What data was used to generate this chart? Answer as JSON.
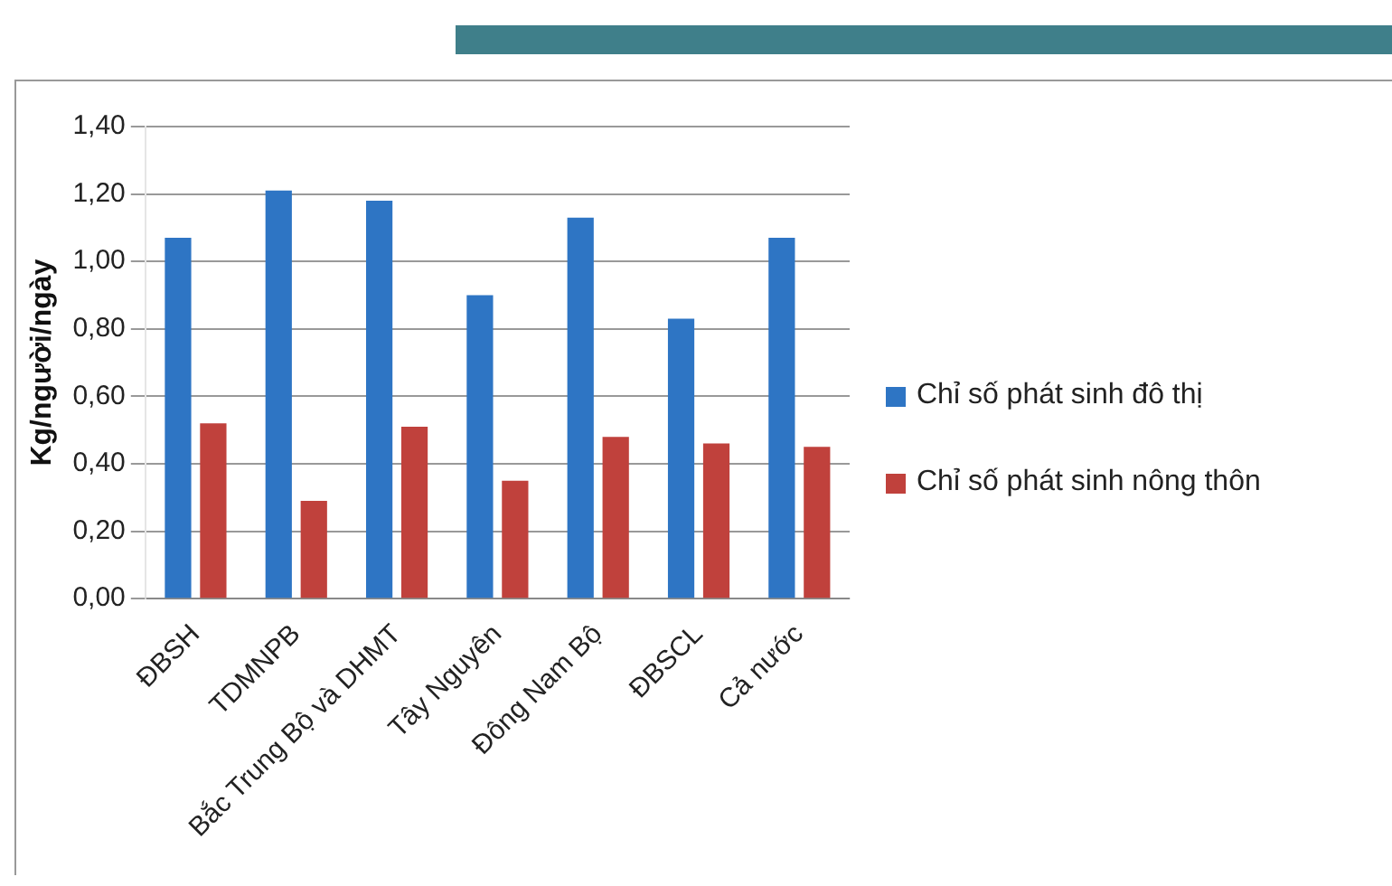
{
  "chart_data": {
    "type": "bar",
    "ylabel": "Kg/người/ngày",
    "categories": [
      "ĐBSH",
      "TDMNPB",
      "Bắc Trung Bộ và DHMT",
      "Tây Nguyên",
      "Đông Nam Bộ",
      "ĐBSCL",
      "Cả nước"
    ],
    "series": [
      {
        "name": "Chỉ số phát sinh đô thị",
        "color": "#2e75c4",
        "values": [
          1.07,
          1.21,
          1.18,
          0.9,
          1.13,
          0.83,
          1.07
        ]
      },
      {
        "name": "Chỉ số phát sinh nông thôn",
        "color": "#c0413c",
        "values": [
          0.52,
          0.29,
          0.51,
          0.35,
          0.48,
          0.46,
          0.45
        ]
      }
    ],
    "ylim": [
      0,
      1.4
    ],
    "yticks": [
      {
        "value": 0,
        "label": "0,00"
      },
      {
        "value": 0.2,
        "label": "0,20"
      },
      {
        "value": 0.4,
        "label": "0,40"
      },
      {
        "value": 0.6,
        "label": "0,60"
      },
      {
        "value": 0.8,
        "label": "0,80"
      },
      {
        "value": 1,
        "label": "1,00"
      },
      {
        "value": 1.2,
        "label": "1,20"
      },
      {
        "value": 1.4,
        "label": "1,40"
      }
    ],
    "grid": "y",
    "legend": "right"
  }
}
